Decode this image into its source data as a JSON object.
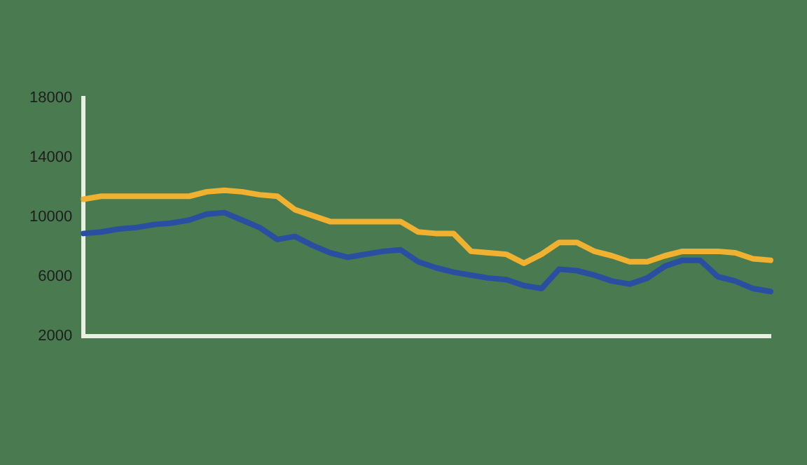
{
  "chart_data": {
    "type": "line",
    "categories": [
      null,
      null,
      null,
      null,
      null,
      null,
      null,
      null,
      null,
      null,
      null,
      null,
      null,
      null,
      null,
      null,
      null,
      null,
      null,
      null,
      null,
      null,
      null,
      null,
      null,
      null,
      null,
      null,
      null,
      null,
      null,
      null,
      null,
      null,
      null,
      null,
      null,
      null,
      null,
      null
    ],
    "series": [
      {
        "color": "#2a4fa0",
        "values": [
          8900,
          9000,
          9200,
          9300,
          9500,
          9600,
          9800,
          10200,
          10300,
          9800,
          9300,
          8500,
          8700,
          8100,
          7600,
          7300,
          7500,
          7700,
          7800,
          7000,
          6600,
          6300,
          6100,
          5900,
          5800,
          5400,
          5200,
          6500,
          6400,
          6100,
          5700,
          5500,
          5900,
          6700,
          7100,
          7100,
          6000,
          5700,
          5200,
          5000
        ]
      },
      {
        "color": "#f0b030",
        "values": [
          11200,
          11400,
          11400,
          11400,
          11400,
          11400,
          11400,
          11700,
          11800,
          11700,
          11500,
          11400,
          10500,
          10100,
          9700,
          9700,
          9700,
          9700,
          9700,
          9000,
          8900,
          8900,
          7700,
          7600,
          7500,
          6900,
          7500,
          8300,
          8300,
          7700,
          7400,
          7000,
          7000,
          7400,
          7700,
          7700,
          7700,
          7600,
          7200,
          7100
        ]
      }
    ],
    "ylim": [
      2000,
      18000
    ],
    "yticks": [
      2000,
      6000,
      10000,
      14000,
      18000
    ],
    "grid": false,
    "legend": false,
    "marker": "none",
    "line_style": "solid"
  }
}
